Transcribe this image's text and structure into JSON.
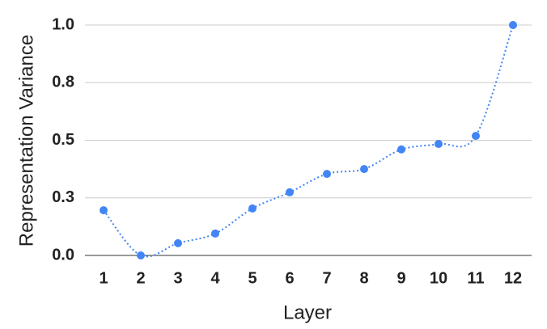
{
  "chart_data": {
    "type": "line",
    "x_label": "Layer",
    "y_label": "Representation Variance",
    "categories": [
      "1",
      "2",
      "3",
      "4",
      "5",
      "6",
      "7",
      "8",
      "9",
      "10",
      "11",
      "12"
    ],
    "series": [
      {
        "name": "Representation Variance",
        "color": "#4285f4",
        "values": [
          0.196,
          0.0,
          0.053,
          0.095,
          0.204,
          0.274,
          0.354,
          0.375,
          0.46,
          0.484,
          0.519,
          1.0
        ]
      }
    ],
    "ylim": [
      0,
      1
    ],
    "yticks": [
      {
        "value": 0,
        "label": "0.0"
      },
      {
        "value": 0.25,
        "label": "0.3"
      },
      0.5,
      {
        "value": 0.75,
        "label": "0.8"
      },
      {
        "value": 1,
        "label": "1.0"
      }
    ],
    "grid": true
  }
}
